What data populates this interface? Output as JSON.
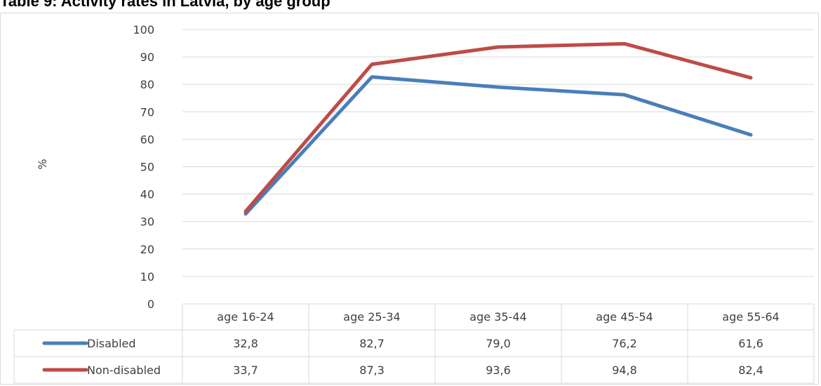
{
  "title": "Table 9: Activity rates in Latvia, by age group",
  "chart_data": {
    "type": "line",
    "title": "Table 9: Activity rates in Latvia, by age group",
    "ylabel": "%",
    "xlabel": "",
    "ylim": [
      0,
      100
    ],
    "yticks": [
      0,
      10,
      20,
      30,
      40,
      50,
      60,
      70,
      80,
      90,
      100
    ],
    "grid": true,
    "legend": "data-table",
    "categories": [
      "age 16-24",
      "age 25-34",
      "age 35-44",
      "age 45-54",
      "age 55-64"
    ],
    "series": [
      {
        "name": "Disabled",
        "color": "#4a7ebb",
        "values": [
          32.8,
          82.7,
          79.0,
          76.2,
          61.6
        ],
        "labels": [
          "32,8",
          "82,7",
          "79,0",
          "76,2",
          "61,6"
        ]
      },
      {
        "name": "Non-disabled",
        "color": "#be4b48",
        "values": [
          33.7,
          87.3,
          93.6,
          94.8,
          82.4
        ],
        "labels": [
          "33,7",
          "87,3",
          "93,6",
          "94,8",
          "82,4"
        ]
      }
    ]
  }
}
